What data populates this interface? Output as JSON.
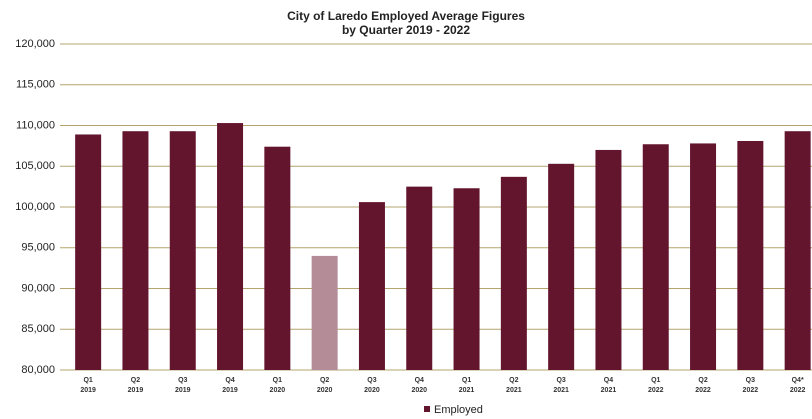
{
  "chart_data": {
    "type": "bar",
    "title": [
      "City of Laredo Employed Average Figures",
      "by Quarter 2019 - 2022"
    ],
    "categories": [
      [
        "Q1",
        "2019"
      ],
      [
        "Q2",
        "2019"
      ],
      [
        "Q3",
        "2019"
      ],
      [
        "Q4",
        "2019"
      ],
      [
        "Q1",
        "2020"
      ],
      [
        "Q2",
        "2020"
      ],
      [
        "Q3",
        "2020"
      ],
      [
        "Q4",
        "2020"
      ],
      [
        "Q1",
        "2021"
      ],
      [
        "Q2",
        "2021"
      ],
      [
        "Q3",
        "2021"
      ],
      [
        "Q4",
        "2021"
      ],
      [
        "Q1",
        "2022"
      ],
      [
        "Q2",
        "2022"
      ],
      [
        "Q3",
        "2022"
      ],
      [
        "Q4*",
        "2022"
      ]
    ],
    "series": [
      {
        "name": "Employed",
        "color": "#63152e",
        "point_colors": [
          "#63152e",
          "#63152e",
          "#63152e",
          "#63152e",
          "#63152e",
          "#b48c98",
          "#63152e",
          "#63152e",
          "#63152e",
          "#63152e",
          "#63152e",
          "#63152e",
          "#63152e",
          "#63152e",
          "#63152e",
          "#63152e"
        ],
        "values": [
          108900,
          109300,
          109300,
          110300,
          107400,
          94000,
          100600,
          102500,
          102300,
          103700,
          105300,
          107000,
          107700,
          107800,
          108100,
          109300
        ]
      }
    ],
    "ylim": [
      80000,
      120000
    ],
    "yticks": [
      {
        "value": 80000,
        "label": "80,000"
      },
      {
        "value": 85000,
        "label": "85,000"
      },
      {
        "value": 90000,
        "label": "90,000"
      },
      {
        "value": 95000,
        "label": "95,000"
      },
      {
        "value": 100000,
        "label": "100,000"
      },
      {
        "value": 105000,
        "label": "105,000"
      },
      {
        "value": 110000,
        "label": "110,000"
      },
      {
        "value": 115000,
        "label": "115,000"
      },
      {
        "value": 120000,
        "label": "120,000"
      }
    ],
    "grid": true,
    "legend": "bottom"
  }
}
